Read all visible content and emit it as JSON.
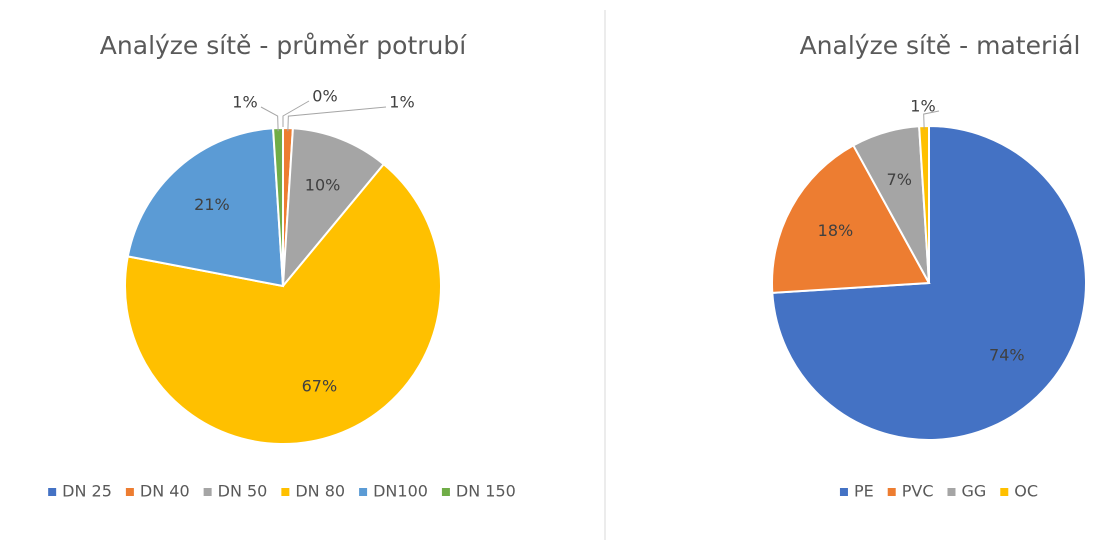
{
  "chart_data": [
    {
      "type": "pie",
      "title": "Analýze sítě - průměr potrubí",
      "categories": [
        "DN 25",
        "DN 40",
        "DN 50",
        "DN 80",
        "DN100",
        "DN 150"
      ],
      "values": [
        0,
        1,
        10,
        67,
        21,
        1
      ],
      "value_labels": [
        "0%",
        "1%",
        "10%",
        "67%",
        "21%",
        "1%"
      ],
      "colors": [
        "#4472c4",
        "#ed7d31",
        "#a5a5a5",
        "#ffc000",
        "#5b9bd5",
        "#70ad47"
      ],
      "legend": "bottom"
    },
    {
      "type": "pie",
      "title": "Analýze sítě - materiál",
      "categories": [
        "PE",
        "PVC",
        "GG",
        "OC"
      ],
      "values": [
        74,
        18,
        7,
        1
      ],
      "value_labels": [
        "74%",
        "18%",
        "7%",
        "1%"
      ],
      "colors": [
        "#4472c4",
        "#ed7d31",
        "#a5a5a5",
        "#ffc000"
      ],
      "legend": "bottom"
    }
  ]
}
